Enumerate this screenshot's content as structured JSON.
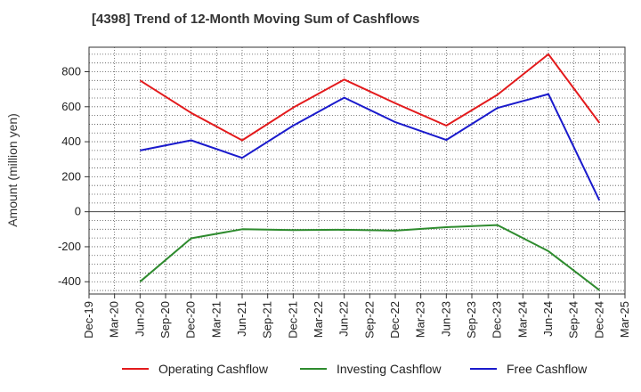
{
  "chart_data": {
    "type": "line",
    "title": "[4398]  Trend of 12-Month Moving Sum of Cashflows",
    "xlabel": "",
    "ylabel": "Amount (million yen)",
    "ylim": [
      -470,
      940
    ],
    "yticks": [
      -400,
      -200,
      0,
      200,
      400,
      600,
      800
    ],
    "x_ticks": [
      "Dec-19",
      "Mar-20",
      "Jun-20",
      "Sep-20",
      "Dec-20",
      "Mar-21",
      "Jun-21",
      "Sep-21",
      "Dec-21",
      "Mar-22",
      "Jun-22",
      "Sep-22",
      "Dec-22",
      "Mar-23",
      "Jun-23",
      "Sep-23",
      "Dec-23",
      "Mar-24",
      "Jun-24",
      "Sep-24",
      "Dec-24",
      "Mar-25"
    ],
    "x": [
      "Jun-20",
      "Dec-20",
      "Jun-21",
      "Dec-21",
      "Jun-22",
      "Dec-22",
      "Jun-23",
      "Dec-23",
      "Jun-24",
      "Dec-24"
    ],
    "series": [
      {
        "name": "Operating Cashflow",
        "color": "#e31a1c",
        "values": [
          750,
          565,
          408,
          595,
          755,
          620,
          492,
          668,
          900,
          508
        ]
      },
      {
        "name": "Investing Cashflow",
        "color": "#2e8b2e",
        "values": [
          -400,
          -152,
          -100,
          -105,
          -103,
          -108,
          -88,
          -76,
          -225,
          -448
        ]
      },
      {
        "name": "Free Cashflow",
        "color": "#1a1acc",
        "values": [
          350,
          408,
          308,
          492,
          652,
          512,
          410,
          593,
          672,
          65
        ]
      }
    ],
    "grid": true,
    "legend_position": "bottom"
  }
}
